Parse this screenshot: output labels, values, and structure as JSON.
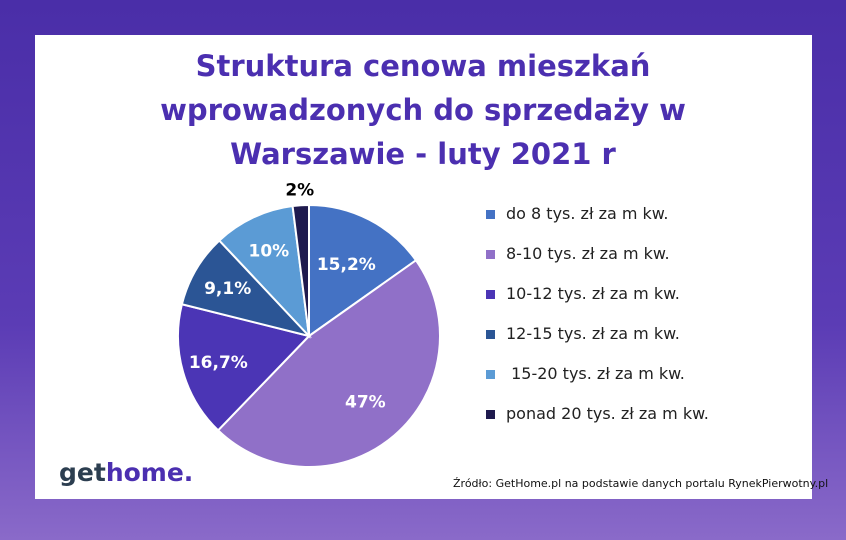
{
  "title_lines": [
    "Struktura cenowa mieszkań",
    "wprowadzonych do sprzedaży w",
    "Warszawie - luty 2021 r"
  ],
  "logo": {
    "part1": "get",
    "part2": "home",
    "dot": "."
  },
  "source": "Źródło: GetHome.pl na podstawie danych portalu RynekPierwotny.pl",
  "colors": {
    "frame": "#4a2ea8",
    "title": "#4b2fb0"
  },
  "chart_data": {
    "type": "pie",
    "title": "Struktura cenowa mieszkań wprowadzonych do sprzedaży w Warszawie - luty 2021 r",
    "legend_placement": "right",
    "slices": [
      {
        "label": "do 8 tys. zł za m kw.",
        "value": 15.2,
        "display": "15,2%",
        "color": "#4472c4"
      },
      {
        "label": "8-10 tys. zł za m kw.",
        "value": 47,
        "display": "47%",
        "color": "#9070c8"
      },
      {
        "label": "10-12 tys. zł za m kw.",
        "value": 16.7,
        "display": "16,7%",
        "color": "#4b35b5"
      },
      {
        "label": "12-15 tys. zł za m kw.",
        "value": 9.1,
        "display": "9,1%",
        "color": "#2b5595"
      },
      {
        "label": " 15-20 tys. zł za m kw.",
        "value": 10,
        "display": "10%",
        "color": "#5b9bd5"
      },
      {
        "label": "ponad 20 tys. zł za m kw.",
        "value": 2,
        "display": "2%",
        "color": "#1f1a4e"
      }
    ]
  }
}
